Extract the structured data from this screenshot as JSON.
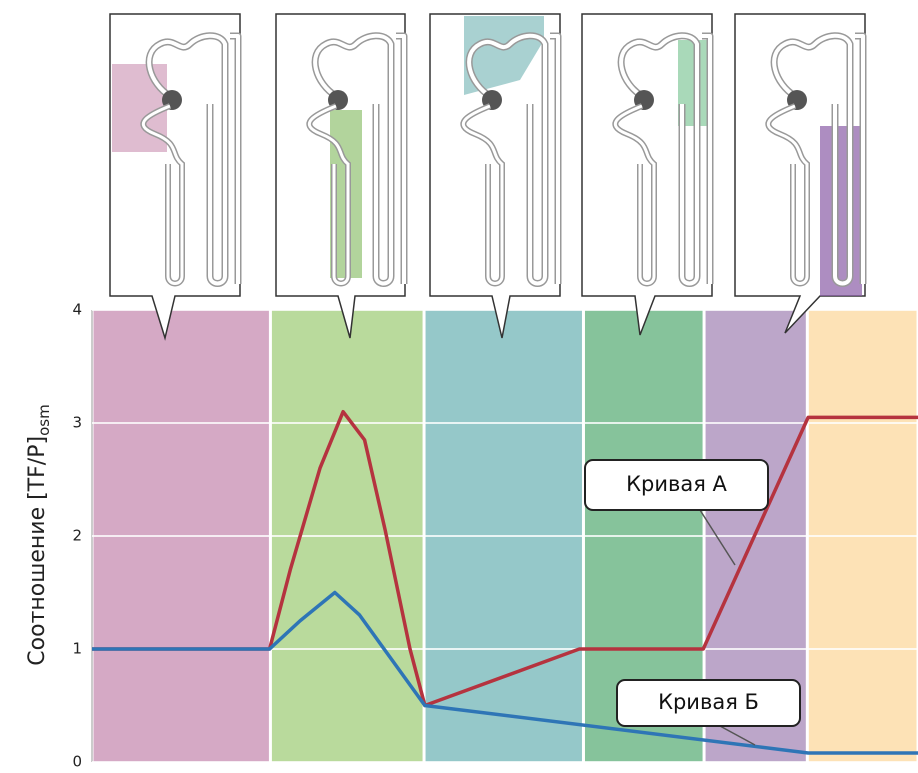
{
  "chart_data": {
    "type": "line",
    "y_label": "Соотношение [TF/P]",
    "y_label_sub": "osm",
    "ylim": [
      0,
      4
    ],
    "yticks": [
      0,
      1,
      2,
      3,
      4
    ],
    "grid": true,
    "xlim": [
      0,
      100
    ],
    "band_edges": [
      0,
      21.6,
      40.2,
      59.5,
      74.1,
      86.6,
      100
    ],
    "band_colors": [
      "#d5a9c5",
      "#b9da9c",
      "#95c8c9",
      "#86c39b",
      "#bca6c9",
      "#fde2b6"
    ],
    "series": [
      {
        "name": "Кривая А",
        "color": "#b5333f",
        "x": [
          0,
          21.5,
          24,
          27.6,
          30.4,
          33,
          35.5,
          38.5,
          40.3,
          59,
          74,
          86.7,
          100
        ],
        "values": [
          1,
          1,
          1.7,
          2.6,
          3.1,
          2.85,
          2.05,
          1.0,
          0.5,
          1.0,
          1.0,
          3.05,
          3.05
        ]
      },
      {
        "name": "Кривая Б",
        "color": "#2e75b6",
        "x": [
          0,
          21.5,
          25.2,
          29.4,
          32.4,
          40.3,
          86.7,
          100
        ],
        "values": [
          1,
          1,
          1.25,
          1.5,
          1.3,
          0.5,
          0.08,
          0.08
        ]
      }
    ]
  }
}
